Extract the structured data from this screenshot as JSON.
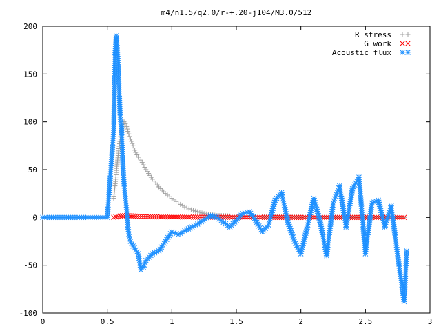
{
  "chart_data": {
    "type": "scatter",
    "title": "m4/n1.5/q2.0/r-+.20-j104/M3.0/512",
    "xlabel": "",
    "ylabel": "",
    "xlim": [
      0,
      3
    ],
    "ylim": [
      -100,
      200
    ],
    "grid": false,
    "legend_position": "top-right",
    "x_ticks": [
      "0",
      "0.5",
      "1",
      "1.5",
      "2",
      "2.5",
      "3"
    ],
    "y_ticks": [
      "-100",
      "-50",
      "0",
      "50",
      "100",
      "150",
      "200"
    ],
    "series": [
      {
        "name": "R stress",
        "marker": "+",
        "color": "#a0a0a0",
        "x": [
          0.55,
          0.56,
          0.57,
          0.58,
          0.59,
          0.6,
          0.61,
          0.62,
          0.63,
          0.64,
          0.65,
          0.66,
          0.68,
          0.7,
          0.72,
          0.74,
          0.76,
          0.78,
          0.8,
          0.85,
          0.9,
          0.95,
          1.0,
          1.05,
          1.1,
          1.15,
          1.2,
          1.25,
          1.3,
          1.35,
          1.4,
          1.5,
          1.6,
          1.7,
          1.8,
          1.9,
          2.0,
          2.2,
          2.4,
          2.6,
          2.8
        ],
        "y": [
          20,
          33,
          47,
          60,
          72,
          82,
          90,
          97,
          100,
          98,
          95,
          90,
          82,
          75,
          68,
          63,
          60,
          55,
          50,
          40,
          32,
          25,
          20,
          15,
          11,
          8,
          6,
          4,
          3,
          2,
          2,
          1,
          1,
          0.5,
          0.5,
          0.5,
          0.3,
          0.2,
          0.1,
          0.1,
          0
        ]
      },
      {
        "name": "G work",
        "marker": "x",
        "color": "#ff0000",
        "x": [
          0.55,
          0.6,
          0.65,
          0.7,
          0.75,
          0.8,
          0.9,
          1.0,
          1.1,
          1.2,
          1.3,
          1.4,
          1.5,
          1.6,
          1.7,
          1.8,
          1.9,
          2.0,
          2.1,
          2.2,
          2.3,
          2.4,
          2.5,
          2.6,
          2.7,
          2.8
        ],
        "y": [
          0,
          1.5,
          2,
          1.5,
          1,
          0.8,
          0.6,
          0.5,
          0.4,
          0.3,
          0.3,
          0.2,
          0.2,
          0.1,
          0.1,
          0.1,
          0,
          0,
          0,
          0,
          0,
          0,
          0,
          0,
          0,
          0
        ]
      },
      {
        "name": "Acoustic flux",
        "marker": "*",
        "color": "#1e90ff",
        "x": [
          0.0,
          0.1,
          0.2,
          0.3,
          0.4,
          0.5,
          0.55,
          0.56,
          0.57,
          0.58,
          0.59,
          0.6,
          0.61,
          0.62,
          0.63,
          0.64,
          0.65,
          0.66,
          0.67,
          0.68,
          0.7,
          0.72,
          0.74,
          0.76,
          0.78,
          0.8,
          0.85,
          0.9,
          0.95,
          1.0,
          1.05,
          1.1,
          1.2,
          1.3,
          1.35,
          1.4,
          1.45,
          1.5,
          1.55,
          1.6,
          1.65,
          1.7,
          1.75,
          1.8,
          1.85,
          1.9,
          1.95,
          2.0,
          2.05,
          2.1,
          2.15,
          2.2,
          2.25,
          2.3,
          2.35,
          2.4,
          2.45,
          2.5,
          2.55,
          2.6,
          2.65,
          2.7,
          2.75,
          2.8,
          2.82
        ],
        "y": [
          0,
          0,
          0,
          0,
          0,
          0,
          91,
          170,
          190,
          175,
          140,
          105,
          95,
          58,
          35,
          22,
          8,
          -10,
          -20,
          -25,
          -30,
          -34,
          -38,
          -55,
          -52,
          -45,
          -38,
          -35,
          -25,
          -15,
          -18,
          -14,
          -7,
          2,
          0,
          -5,
          -10,
          -3,
          4,
          6,
          -3,
          -15,
          -8,
          18,
          26,
          -5,
          -25,
          -38,
          -10,
          20,
          -5,
          -40,
          15,
          33,
          -10,
          30,
          42,
          -38,
          15,
          18,
          -10,
          12,
          -40,
          -88,
          -35
        ]
      }
    ]
  }
}
